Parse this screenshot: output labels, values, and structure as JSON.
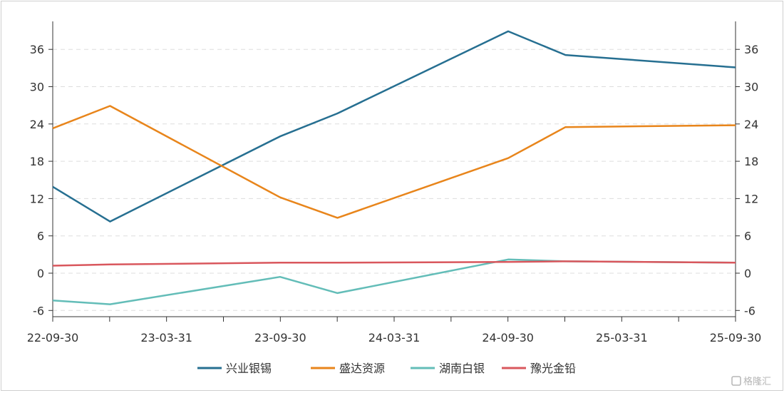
{
  "chart_data": {
    "type": "line",
    "x": [
      "22-09-30",
      "23-03-31",
      "23-09-30",
      "24-03-31",
      "24-09-30",
      "25-03-31",
      "25-09-30"
    ],
    "x_positions": [
      "2022-09-30",
      "2022-12-31",
      "2023-09-30",
      "2023-12-31",
      "2024-09-30",
      "2024-12-31",
      "2025-09-30"
    ],
    "xticks": [
      "22-09-30",
      "23-03-31",
      "23-09-30",
      "24-03-31",
      "24-09-30",
      "25-03-31",
      "25-09-30"
    ],
    "yticks": [
      36,
      30,
      24,
      18,
      12,
      6,
      0,
      -6
    ],
    "ylim": [
      -7,
      40.5
    ],
    "grid": true,
    "legend_position": "bottom",
    "series": [
      {
        "name": "兴业银锡",
        "color": "#266f91",
        "values": [
          13.9,
          8.3,
          22.0,
          25.7,
          38.9,
          35.1,
          33.1
        ]
      },
      {
        "name": "盛达资源",
        "color": "#e8851b",
        "values": [
          23.3,
          26.9,
          12.2,
          8.9,
          18.5,
          23.5,
          23.8
        ]
      },
      {
        "name": "湖南白银",
        "color": "#63bdb8",
        "values": [
          -4.4,
          -5.0,
          -0.6,
          -3.2,
          2.2,
          1.9,
          1.7
        ]
      },
      {
        "name": "豫光金铅",
        "color": "#d9575d",
        "values": [
          1.2,
          1.4,
          1.7,
          1.7,
          1.8,
          1.9,
          1.7
        ]
      }
    ]
  },
  "watermark": "格隆汇"
}
